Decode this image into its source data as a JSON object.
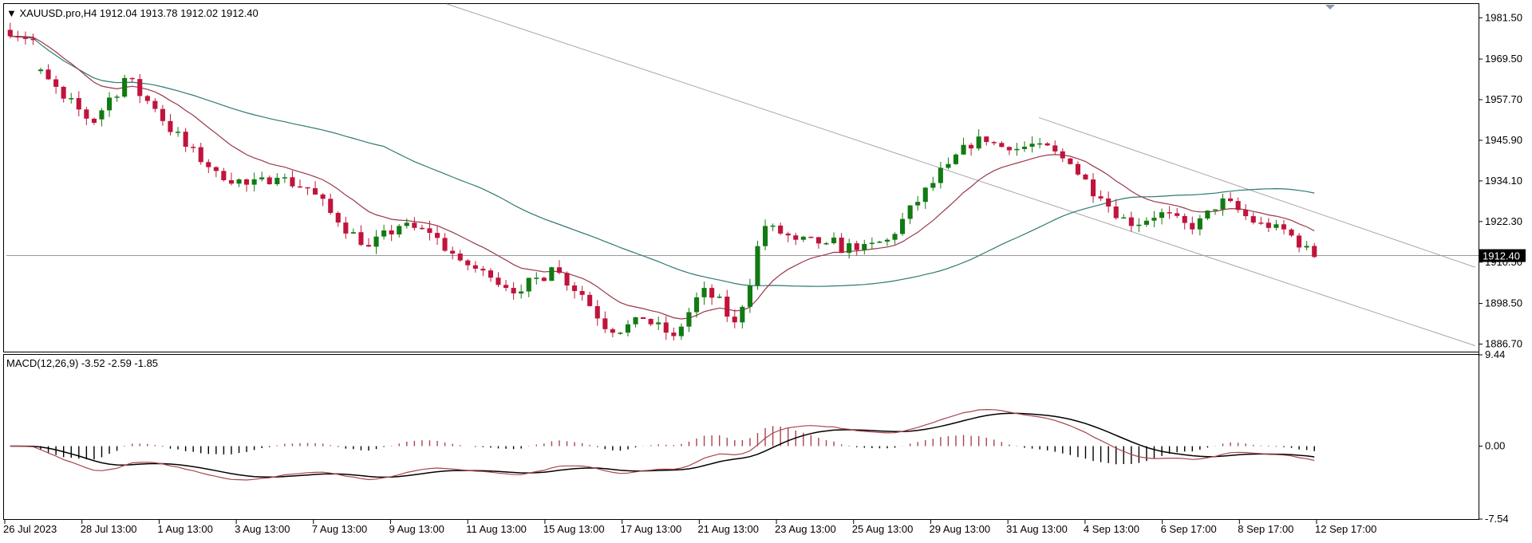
{
  "symbol_header": {
    "text": "XAUUSD.pro,H4  1912.04 1913.78 1912.02 1912.40"
  },
  "price_panel": {
    "current_price_label": "1912.40",
    "y_ticks": [
      "1981.50",
      "1969.50",
      "1957.70",
      "1945.90",
      "1934.10",
      "1922.30",
      "1910.50",
      "1898.50",
      "1886.70"
    ]
  },
  "macd_panel": {
    "header": "MACD(12,26,9) -3.52 -2.59 -1.85",
    "y_ticks": [
      "9.44",
      "0.00",
      "-7.54"
    ]
  },
  "x_ticks": [
    "26 Jul 2023",
    "28 Jul 13:00",
    "1 Aug 13:00",
    "3 Aug 13:00",
    "7 Aug 13:00",
    "9 Aug 13:00",
    "11 Aug 13:00",
    "15 Aug 13:00",
    "17 Aug 13:00",
    "21 Aug 13:00",
    "23 Aug 13:00",
    "25 Aug 13:00",
    "29 Aug 13:00",
    "31 Aug 13:00",
    "4 Sep 13:00",
    "6 Sep 17:00",
    "8 Sep 17:00",
    "12 Sep 17:00"
  ],
  "colors": {
    "bull_candle": "#127a12",
    "bear_candle": "#c0143c",
    "ma_fast": "#9b3848",
    "ma_slow": "#2e7a72",
    "trend_lines": "#a8a8a8",
    "macd_hist_positive": "#a9434f",
    "macd_hist_negative": "#000000",
    "macd_line": "#000000",
    "signal_line": "#a9434f"
  },
  "chart_data": [
    {
      "type": "candlestick",
      "title": "XAUUSD.pro,H4",
      "ylim": [
        1884.5,
        1985.5
      ],
      "ohlc_anchors": [
        [
          1978,
          1981,
          1972,
          1975
        ],
        [
          1966,
          1985,
          1954,
          1958
        ],
        [
          1958,
          1966,
          1948,
          1951
        ],
        [
          1952,
          1968,
          1946,
          1964
        ],
        [
          1964,
          1970,
          1951,
          1955
        ],
        [
          1955,
          1960,
          1942,
          1944
        ],
        [
          1944,
          1949,
          1934,
          1937
        ],
        [
          1937,
          1947,
          1931,
          1933
        ],
        [
          1933,
          1937,
          1926,
          1935
        ],
        [
          1935,
          1944,
          1929,
          1932
        ],
        [
          1932,
          1940,
          1921,
          1922
        ],
        [
          1922,
          1926,
          1913,
          1915
        ],
        [
          1915,
          1925,
          1910,
          1921
        ],
        [
          1921,
          1932,
          1917,
          1919
        ],
        [
          1919,
          1925,
          1909,
          1911
        ],
        [
          1911,
          1918,
          1905,
          1906
        ],
        [
          1906,
          1913,
          1898,
          1902
        ],
        [
          1902,
          1915,
          1896,
          1909
        ],
        [
          1909,
          1913,
          1899,
          1901
        ],
        [
          1901,
          1908,
          1888,
          1890
        ],
        [
          1890,
          1897,
          1885,
          1894
        ],
        [
          1894,
          1900,
          1886,
          1889
        ],
        [
          1889,
          1906,
          1887,
          1903
        ],
        [
          1903,
          1910,
          1889,
          1893
        ],
        [
          1893,
          1925,
          1891,
          1921
        ],
        [
          1921,
          1925,
          1913,
          1917
        ],
        [
          1917,
          1920,
          1908,
          1916
        ],
        [
          1916,
          1922,
          1903,
          1914
        ],
        [
          1914,
          1919,
          1910,
          1917
        ],
        [
          1917,
          1932,
          1915,
          1928
        ],
        [
          1928,
          1944,
          1926,
          1939
        ],
        [
          1939,
          1949,
          1935,
          1947
        ],
        [
          1947,
          1949,
          1941,
          1943
        ],
        [
          1943,
          1952,
          1937,
          1945
        ],
        [
          1945,
          1948,
          1936,
          1939
        ],
        [
          1939,
          1941,
          1926,
          1929
        ],
        [
          1929,
          1932,
          1918,
          1921
        ],
        [
          1921,
          1927,
          1917,
          1925
        ],
        [
          1925,
          1930,
          1918,
          1920
        ],
        [
          1920,
          1930,
          1918,
          1929
        ],
        [
          1929,
          1931,
          1920,
          1922
        ],
        [
          1922,
          1926,
          1917,
          1920
        ],
        [
          1920,
          1921,
          1908,
          1912
        ]
      ]
    },
    {
      "type": "bar",
      "title": "MACD(12,26,9)",
      "ylim": [
        -7.54,
        9.44
      ],
      "last_values": {
        "macd": -3.52,
        "signal": -2.59,
        "histogram": -1.85
      }
    }
  ]
}
